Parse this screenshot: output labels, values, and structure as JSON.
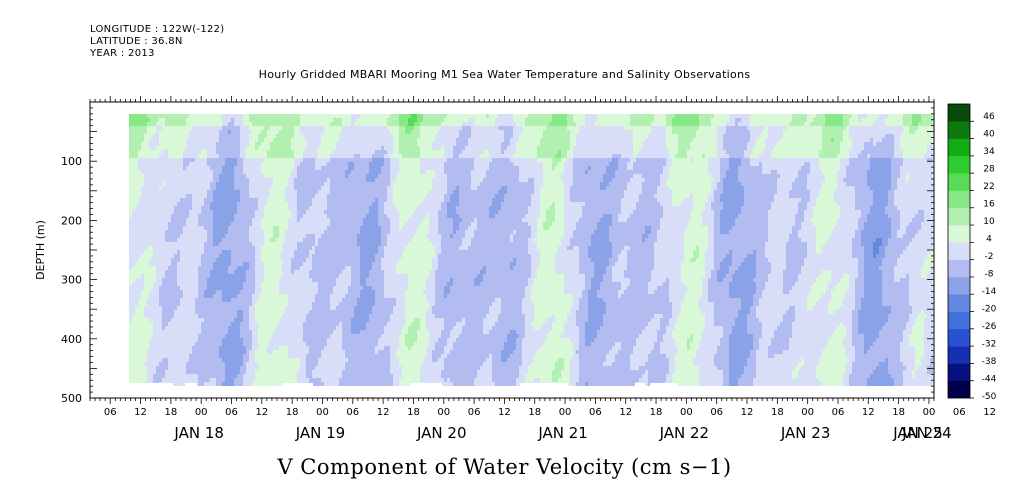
{
  "header": {
    "longitude": "LONGITUDE : 122W(-122)",
    "latitude": "LATITUDE : 36.8N",
    "year": "YEAR : 2013"
  },
  "chart_data": {
    "type": "heatmap",
    "title": "Hourly Gridded MBARI Mooring M1 Sea Water Temperature and Salinity Observations",
    "xlabel": "V Component of Water Velocity (cm s−1)",
    "ylabel": "DEPTH (m)",
    "ylim": [
      500,
      0
    ],
    "y_ticks": [
      100,
      200,
      300,
      400,
      500
    ],
    "y_data_range": [
      20,
      475
    ],
    "x_start": "JAN 17 02:00",
    "x_hour_ticks": [
      "06",
      "12",
      "18",
      "00",
      "06",
      "12",
      "18",
      "00",
      "06",
      "12",
      "18",
      "00",
      "06",
      "12",
      "18",
      "00",
      "06",
      "12",
      "18",
      "00",
      "06",
      "12",
      "18",
      "00",
      "06",
      "12",
      "18",
      "00",
      "06",
      "12",
      "18",
      "00",
      "06"
    ],
    "x_day_labels": [
      "JAN 18",
      "JAN 19",
      "JAN 20",
      "JAN 21",
      "JAN 22",
      "JAN 23",
      "JAN 24",
      "JAN 25"
    ],
    "colorbar": {
      "levels": [
        -50,
        -44,
        -38,
        -32,
        -26,
        -20,
        -14,
        -8,
        -2,
        4,
        10,
        16,
        22,
        28,
        34,
        40,
        46
      ],
      "label_values": [
        "46",
        "40",
        "34",
        "28",
        "22",
        "16",
        "10",
        "4",
        "-2",
        "-8",
        "-14",
        "-20",
        "-26",
        "-32",
        "-38",
        "-44",
        "-50"
      ],
      "colors_low_to_high": [
        "#00004a",
        "#06107e",
        "#1530b2",
        "#2a50d2",
        "#4270dc",
        "#6488e0",
        "#8aa2e8",
        "#b2bcf0",
        "#d8ddf8",
        "#d8f8d8",
        "#b2f0b2",
        "#86e886",
        "#58dc58",
        "#2ecc2e",
        "#14aa14",
        "#0a7a0a",
        "#0a4a0a"
      ]
    },
    "grid": false,
    "legend_position": "right"
  }
}
